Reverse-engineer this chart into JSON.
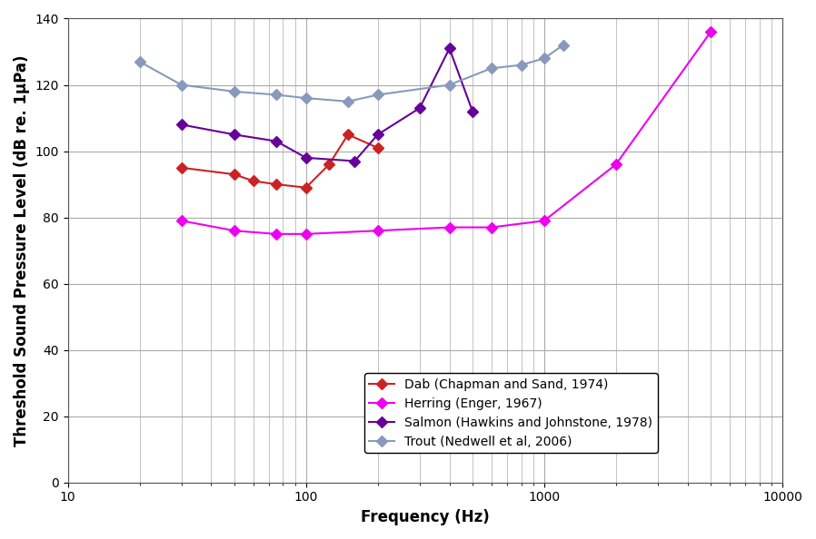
{
  "title": "",
  "xlabel": "Frequency (Hz)",
  "ylabel": "Threshold Sound Pressure Level (dB re. 1μPa)",
  "xlim": [
    10,
    10000
  ],
  "ylim": [
    0,
    140
  ],
  "yticks": [
    0,
    20,
    40,
    60,
    80,
    100,
    120,
    140
  ],
  "dab": {
    "label": "Dab (Chapman and Sand, 1974)",
    "color": "#cc2222",
    "marker": "D",
    "x": [
      30,
      50,
      60,
      75,
      100,
      125,
      150,
      200
    ],
    "y": [
      95,
      93,
      91,
      90,
      89,
      96,
      105,
      101
    ]
  },
  "herring": {
    "label": "Herring (Enger, 1967)",
    "color": "#ee00ee",
    "marker": "D",
    "x": [
      30,
      50,
      75,
      100,
      200,
      400,
      600,
      1000,
      2000,
      5000
    ],
    "y": [
      79,
      76,
      75,
      75,
      76,
      77,
      77,
      79,
      96,
      136
    ]
  },
  "salmon": {
    "label": "Salmon (Hawkins and Johnstone, 1978)",
    "color": "#660099",
    "marker": "D",
    "x": [
      30,
      50,
      75,
      100,
      160,
      200,
      300,
      400,
      500
    ],
    "y": [
      108,
      105,
      103,
      98,
      97,
      105,
      113,
      131,
      112
    ]
  },
  "trout": {
    "label": "Trout (Nedwell et al, 2006)",
    "color": "#8899bb",
    "marker": "D",
    "x": [
      20,
      30,
      50,
      75,
      100,
      150,
      200,
      400,
      600,
      800,
      1000,
      1200
    ],
    "y": [
      127,
      120,
      118,
      117,
      116,
      115,
      117,
      120,
      125,
      126,
      128,
      132
    ]
  },
  "background_color": "#ffffff",
  "grid_color": "#aaaaaa",
  "legend_fontsize": 10,
  "axis_label_fontsize": 12,
  "tick_fontsize": 10
}
